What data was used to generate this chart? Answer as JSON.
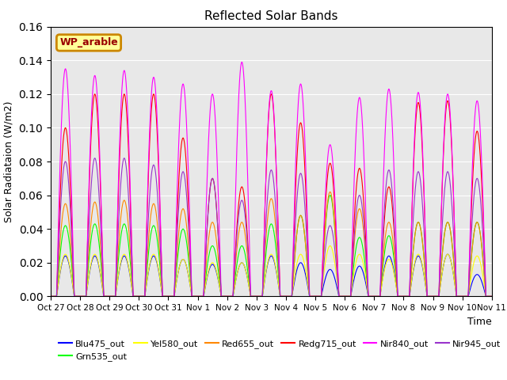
{
  "title": "Reflected Solar Bands",
  "xlabel": "Time",
  "ylabel": "Solar Radiataion (W/m2)",
  "ylim": [
    0,
    0.16
  ],
  "annotation": "WP_arable",
  "x_tick_labels": [
    "Oct 27",
    "Oct 28",
    "Oct 29",
    "Oct 30",
    "Oct 31",
    "Nov 1",
    "Nov 2",
    "Nov 3",
    "Nov 4",
    "Nov 5",
    "Nov 6",
    "Nov 7",
    "Nov 8",
    "Nov 9",
    "Nov 10",
    "Nov 11"
  ],
  "series": [
    {
      "label": "Blu475_out",
      "color": "#0000ff"
    },
    {
      "label": "Grn535_out",
      "color": "#00ff00"
    },
    {
      "label": "Yel580_out",
      "color": "#ffff00"
    },
    {
      "label": "Red655_out",
      "color": "#ff8800"
    },
    {
      "label": "Redg715_out",
      "color": "#ff0000"
    },
    {
      "label": "Nir840_out",
      "color": "#ff00ff"
    },
    {
      "label": "Nir945_out",
      "color": "#9933cc"
    }
  ],
  "annotation_bbox": {
    "facecolor": "#ffff99",
    "edgecolor": "#cc8800",
    "linewidth": 2
  },
  "background_color": "#e8e8e8",
  "n_days": 15,
  "day_points": 288,
  "day_peaks_nir840": [
    0.135,
    0.131,
    0.134,
    0.13,
    0.126,
    0.12,
    0.139,
    0.122,
    0.126,
    0.09,
    0.118,
    0.123,
    0.121,
    0.12,
    0.116
  ],
  "day_peaks_nir945": [
    0.08,
    0.082,
    0.082,
    0.078,
    0.074,
    0.07,
    0.057,
    0.075,
    0.073,
    0.042,
    0.06,
    0.075,
    0.074,
    0.074,
    0.07
  ],
  "day_peaks_redg715": [
    0.1,
    0.12,
    0.12,
    0.12,
    0.094,
    0.07,
    0.065,
    0.12,
    0.103,
    0.079,
    0.076,
    0.065,
    0.115,
    0.116,
    0.098
  ],
  "day_peaks_red655": [
    0.055,
    0.056,
    0.057,
    0.055,
    0.052,
    0.044,
    0.044,
    0.058,
    0.048,
    0.062,
    0.052,
    0.044,
    0.044,
    0.044,
    0.044
  ],
  "day_peaks_grn535": [
    0.042,
    0.043,
    0.043,
    0.042,
    0.04,
    0.03,
    0.03,
    0.043,
    0.048,
    0.06,
    0.035,
    0.036,
    0.044,
    0.044,
    0.044
  ],
  "day_peaks_yel580": [
    0.025,
    0.025,
    0.025,
    0.025,
    0.022,
    0.02,
    0.02,
    0.025,
    0.025,
    0.03,
    0.025,
    0.022,
    0.025,
    0.025,
    0.024
  ],
  "day_peaks_blu475": [
    0.024,
    0.024,
    0.024,
    0.024,
    0.022,
    0.019,
    0.02,
    0.024,
    0.02,
    0.016,
    0.018,
    0.024,
    0.024,
    0.025,
    0.013
  ]
}
